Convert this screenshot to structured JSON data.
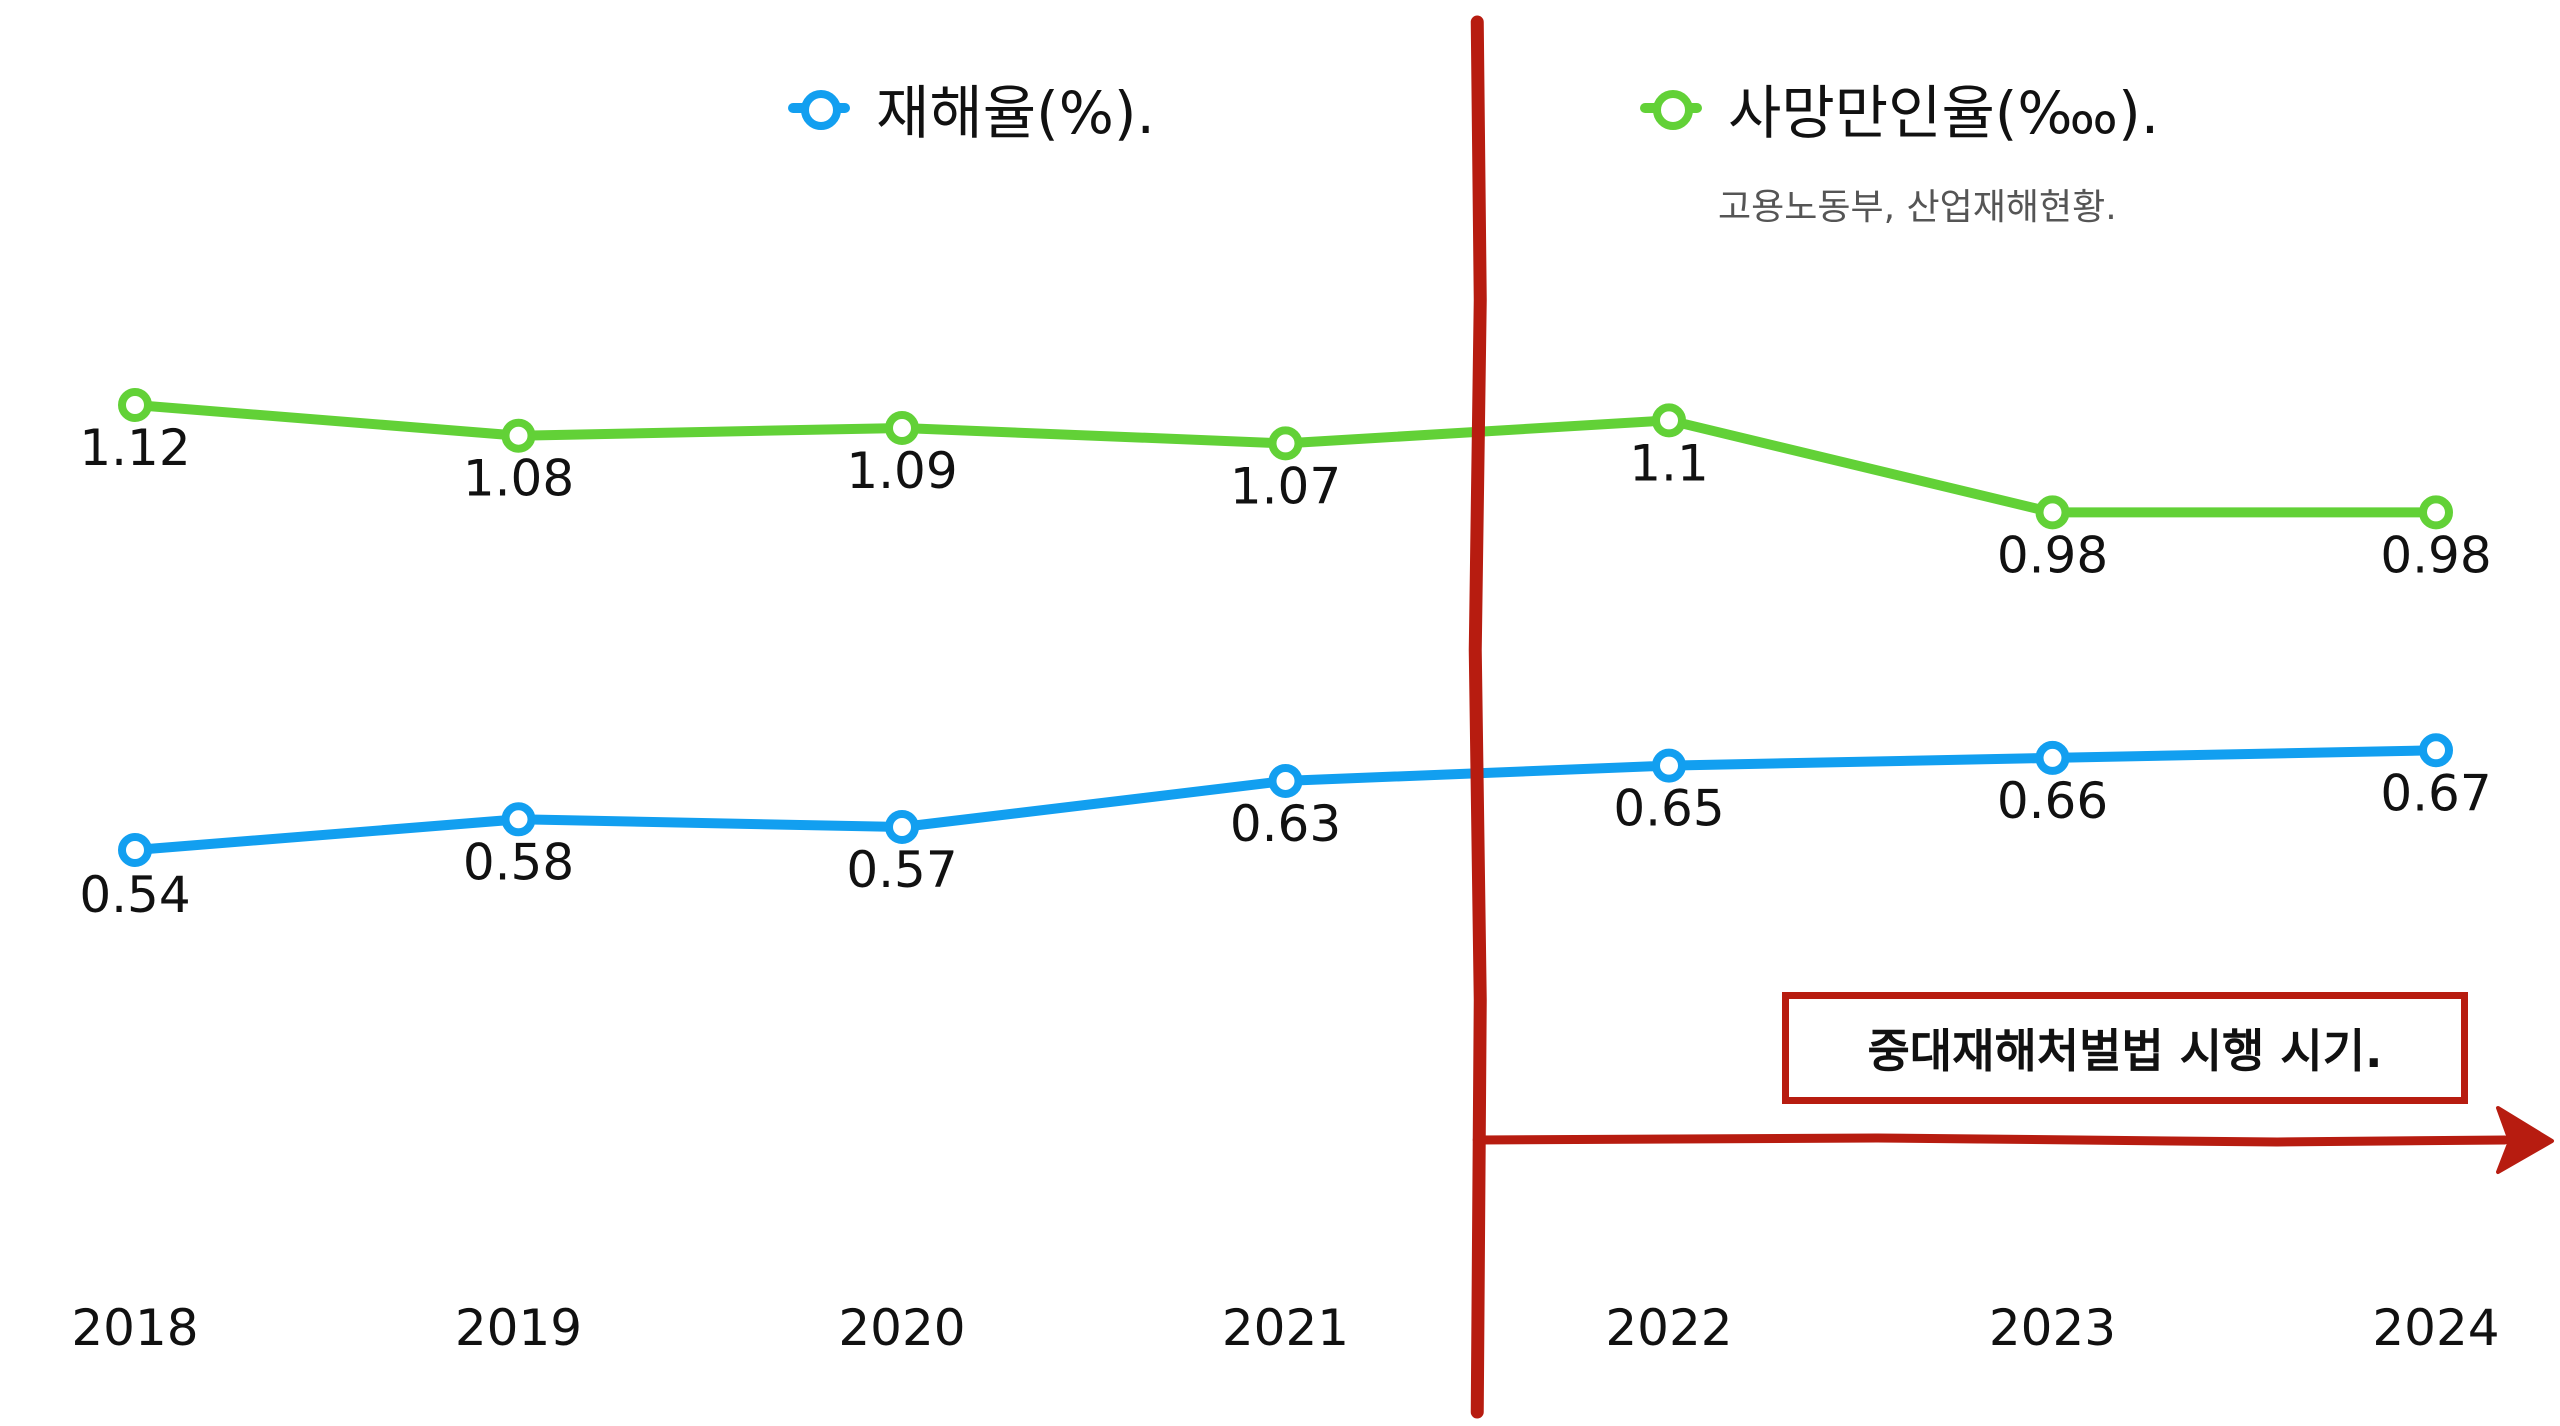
{
  "chart_data": {
    "type": "line",
    "categories": [
      "2018",
      "2019",
      "2020",
      "2021",
      "2022",
      "2023",
      "2024"
    ],
    "series": [
      {
        "name": "재해율(%).",
        "color": "#129ff0",
        "values": [
          0.54,
          0.58,
          0.57,
          0.63,
          0.65,
          0.66,
          0.67
        ],
        "labels": [
          "0.54",
          "0.58",
          "0.57",
          "0.63",
          "0.65",
          "0.66",
          "0.67"
        ]
      },
      {
        "name": "사망만인율(‱).",
        "color": "#62d137",
        "values": [
          1.12,
          1.08,
          1.09,
          1.07,
          1.1,
          0.98,
          0.98
        ],
        "labels": [
          "1.12",
          "1.08",
          "1.09",
          "1.07",
          "1.1",
          "0.98",
          "0.98"
        ]
      }
    ],
    "annotation": {
      "text": "중대재해처벌법 시행 시기.",
      "after_category": "2021",
      "color": "#b71c10"
    },
    "source": "고용노동부, 산업재해현황.",
    "xlabel": "",
    "ylabel": "",
    "ylim": [
      0.3,
      1.35
    ],
    "grid": false,
    "legend": "top"
  }
}
